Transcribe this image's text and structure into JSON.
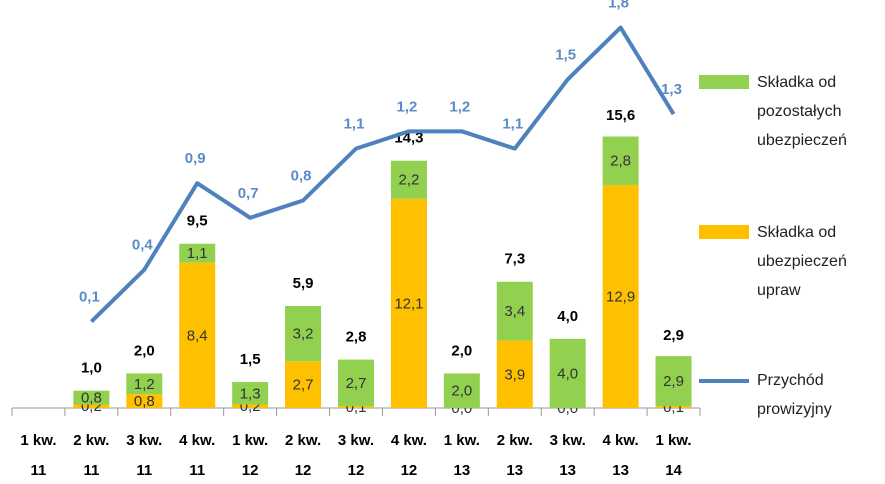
{
  "chart_data": {
    "type": "bar",
    "stacked": true,
    "categories": [
      "1 kw. 11",
      "2 kw. 11",
      "3 kw. 11",
      "4 kw. 11",
      "1 kw. 12",
      "2 kw. 12",
      "3 kw. 12",
      "4 kw. 12",
      "1 kw. 13",
      "2 kw. 13",
      "3 kw. 13",
      "4 kw. 13",
      "1 kw. 14"
    ],
    "series": [
      {
        "name": "Składka od pozostałych ubezpieczeń",
        "color": "#92d050",
        "type": "bar",
        "values": [
          null,
          0.8,
          1.2,
          1.1,
          1.3,
          3.2,
          2.7,
          2.2,
          2.0,
          3.4,
          4.0,
          2.8,
          2.9
        ],
        "value_labels": [
          null,
          "0,8",
          "1,2",
          "1,1",
          "1,3",
          "3,2",
          "2,7",
          "2,2",
          "2,0",
          "3,4",
          "4,0",
          "2,8",
          "2,9"
        ]
      },
      {
        "name": "Składka od ubezpieczeń upraw",
        "color": "#ffc000",
        "type": "bar",
        "values": [
          null,
          0.2,
          0.8,
          8.4,
          0.2,
          2.7,
          0.1,
          12.1,
          0.0,
          3.9,
          0.0,
          12.9,
          0.1
        ],
        "value_labels": [
          null,
          "0,2",
          "0,8",
          "8,4",
          "0,2",
          "2,7",
          "0,1",
          "12,1",
          "0,0",
          "3,9",
          "0,0",
          "12,9",
          "0,1"
        ]
      },
      {
        "name": "Przychód prowizyjny",
        "color": "#4f81bd",
        "type": "line",
        "axis": "y2",
        "values": [
          null,
          0.1,
          0.4,
          0.9,
          0.7,
          0.8,
          1.1,
          1.2,
          1.2,
          1.1,
          1.5,
          1.8,
          1.3
        ],
        "value_labels": [
          null,
          "0,1",
          "0,4",
          "0,9",
          "0,7",
          "0,8",
          "1,1",
          "1,2",
          "1,2",
          "1,1",
          "1,5",
          "1,8",
          "1,3"
        ]
      }
    ],
    "totals": [
      null,
      1.0,
      2.0,
      9.5,
      1.5,
      5.9,
      2.8,
      14.3,
      2.0,
      7.3,
      4.0,
      15.6,
      2.9
    ],
    "total_labels": [
      null,
      "1,0",
      "2,0",
      "9,5",
      "1,5",
      "5,9",
      "2,8",
      "14,3",
      "2,0",
      "7,3",
      "4,0",
      "15,6",
      "2,9"
    ],
    "ylim": [
      0,
      24
    ],
    "y2lim": [
      -0.4,
      2.0
    ]
  }
}
